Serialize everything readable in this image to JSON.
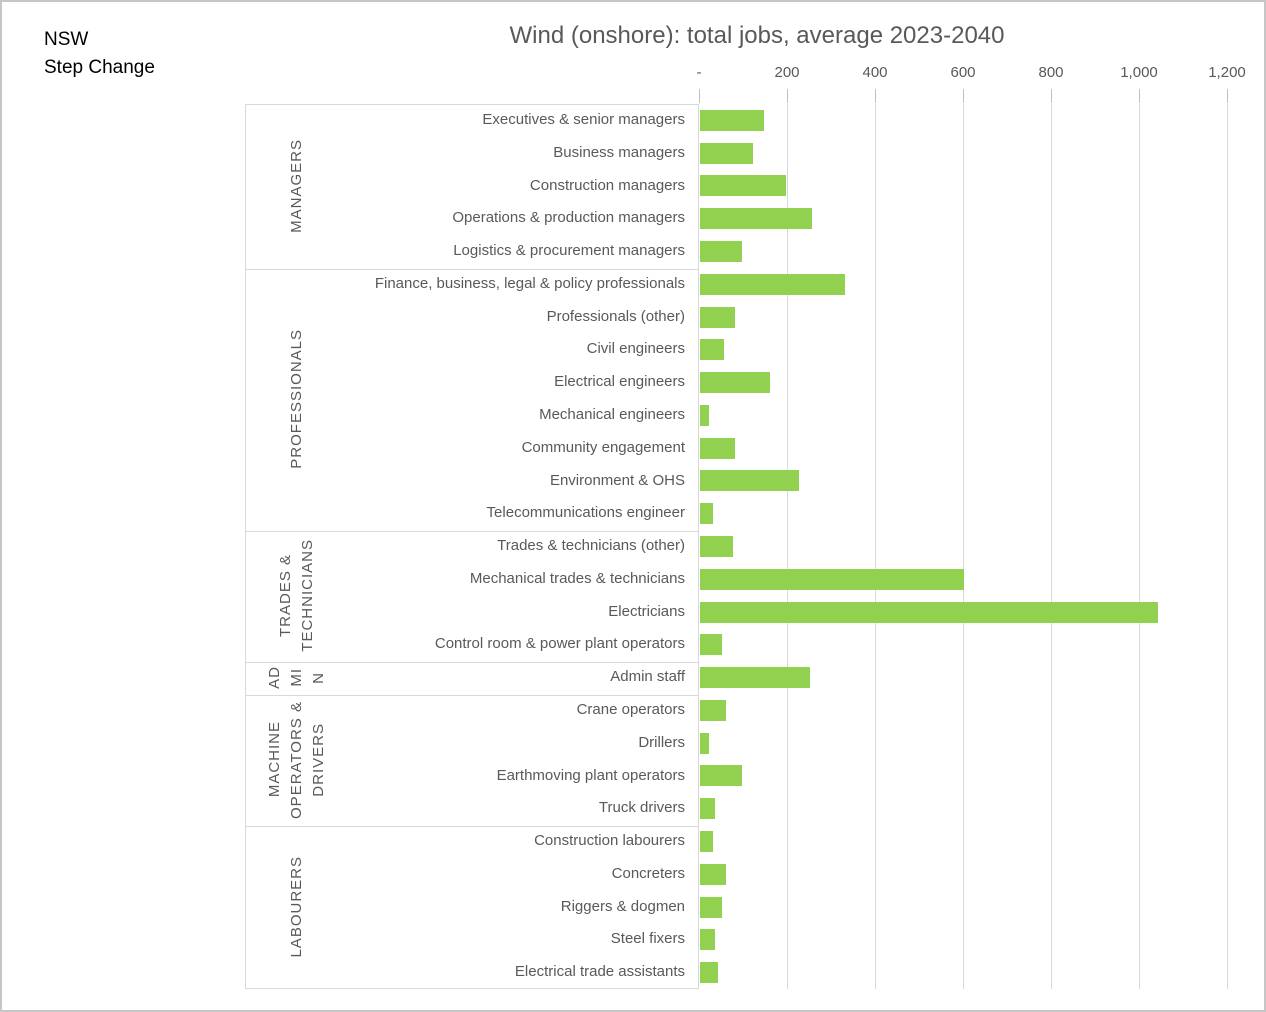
{
  "corner": {
    "line1": "NSW",
    "line2": "Step Change"
  },
  "title": "Wind (onshore): total jobs, average 2023-2040",
  "colors": {
    "bar": "#92d050",
    "text": "#595959",
    "gridline": "#d9d9d9",
    "tick": "#bfbfbf",
    "table_border": "#d9d9d9",
    "corner_text": "#000000"
  },
  "x_axis": {
    "tick_labels": [
      "-",
      "200",
      "400",
      "600",
      "800",
      "1,000",
      "1,200"
    ],
    "tick_values": [
      0,
      200,
      400,
      600,
      800,
      1000,
      1200
    ],
    "min": 0,
    "max": 1200
  },
  "chart_data": {
    "type": "bar",
    "orientation": "horizontal",
    "title": "Wind (onshore): total jobs, average 2023-2040",
    "xlabel": "",
    "ylabel": "",
    "xlim": [
      0,
      1200
    ],
    "grid": true,
    "legend": false,
    "groups": [
      {
        "label": "MANAGERS",
        "label_lines": [
          "MANAGERS"
        ],
        "items": [
          {
            "category": "Executives & senior managers",
            "value": 145
          },
          {
            "category": "Business managers",
            "value": 120
          },
          {
            "category": "Construction managers",
            "value": 195
          },
          {
            "category": "Operations & production managers",
            "value": 255
          },
          {
            "category": "Logistics & procurement managers",
            "value": 95
          }
        ]
      },
      {
        "label": "PROFESSIONALS",
        "label_lines": [
          "PROFESSIONALS"
        ],
        "items": [
          {
            "category": "Finance, business, legal & policy professionals",
            "value": 330
          },
          {
            "category": "Professionals (other)",
            "value": 80
          },
          {
            "category": "Civil engineers",
            "value": 55
          },
          {
            "category": "Electrical engineers",
            "value": 160
          },
          {
            "category": "Mechanical engineers",
            "value": 20
          },
          {
            "category": "Community engagement",
            "value": 80
          },
          {
            "category": "Environment & OHS",
            "value": 225
          },
          {
            "category": "Telecommunications engineer",
            "value": 30
          }
        ]
      },
      {
        "label": "TRADES & TECHNICIANS",
        "label_lines": [
          "TRADES &",
          "TECHNICIANS"
        ],
        "items": [
          {
            "category": "Trades & technicians (other)",
            "value": 75
          },
          {
            "category": "Mechanical trades & technicians",
            "value": 600
          },
          {
            "category": "Electricians",
            "value": 1040
          },
          {
            "category": "Control room & power plant operators",
            "value": 50
          }
        ]
      },
      {
        "label": "ADMIN",
        "label_lines": [
          "AD",
          "MI",
          "N"
        ],
        "items": [
          {
            "category": "Admin staff",
            "value": 250
          }
        ]
      },
      {
        "label": "MACHINE OPERATORS & DRIVERS",
        "label_lines": [
          "MACHINE",
          "OPERATORS &",
          "DRIVERS"
        ],
        "items": [
          {
            "category": "Crane operators",
            "value": 60
          },
          {
            "category": "Drillers",
            "value": 20
          },
          {
            "category": "Earthmoving plant operators",
            "value": 95
          },
          {
            "category": "Truck drivers",
            "value": 35
          }
        ]
      },
      {
        "label": "LABOURERS",
        "label_lines": [
          "LABOURERS"
        ],
        "items": [
          {
            "category": "Construction labourers",
            "value": 30
          },
          {
            "category": "Concreters",
            "value": 60
          },
          {
            "category": "Riggers & dogmen",
            "value": 50
          },
          {
            "category": "Steel fixers",
            "value": 35
          },
          {
            "category": "Electrical trade assistants",
            "value": 40
          }
        ]
      }
    ]
  }
}
